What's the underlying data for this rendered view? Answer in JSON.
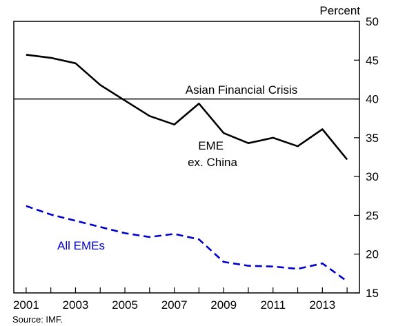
{
  "chart_data": {
    "type": "line",
    "unit_label": "Percent",
    "source": "Source: IMF.",
    "xlim": [
      2000.5,
      2014.5
    ],
    "ylim": [
      15,
      50
    ],
    "x_ticks": [
      2001,
      2003,
      2005,
      2007,
      2009,
      2011,
      2013
    ],
    "y_ticks": [
      15,
      20,
      25,
      30,
      35,
      40,
      45,
      50
    ],
    "grid": false,
    "series": [
      {
        "name": "EME ex. China",
        "label_lines": [
          "EME",
          "ex. China"
        ],
        "color": "#000000",
        "dash": "solid",
        "x": [
          2001,
          2002,
          2003,
          2004,
          2005,
          2006,
          2007,
          2008,
          2009,
          2010,
          2011,
          2012,
          2013,
          2014
        ],
        "values": [
          45.7,
          45.3,
          44.6,
          41.8,
          39.8,
          37.8,
          36.7,
          39.4,
          35.6,
          34.3,
          35.0,
          33.9,
          36.1,
          32.2
        ]
      },
      {
        "name": "All EMEs",
        "label_lines": [
          "All EMEs"
        ],
        "color": "#0000cc",
        "dash": "dashed",
        "x": [
          2001,
          2002,
          2003,
          2004,
          2005,
          2006,
          2007,
          2008,
          2009,
          2010,
          2011,
          2012,
          2013,
          2014
        ],
        "values": [
          26.2,
          25.1,
          24.3,
          23.5,
          22.7,
          22.2,
          22.6,
          21.9,
          19.0,
          18.5,
          18.4,
          18.1,
          18.8,
          16.5
        ]
      }
    ],
    "annotations": [
      {
        "name": "asian-financial-crisis",
        "text": "Asian Financial Crisis",
        "y": 40
      }
    ]
  }
}
